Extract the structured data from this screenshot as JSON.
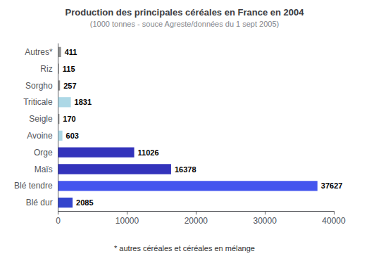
{
  "chart_data": {
    "type": "bar",
    "orientation": "horizontal",
    "title": "Production des principales céréales en France en 2004",
    "subtitle": "(1000 tonnes - souce Agreste/données du 1 sept 2005)",
    "footnote": "* autres céréales et céréales en mélange",
    "categories": [
      "Autres*",
      "Riz",
      "Sorgho",
      "Triticale",
      "Seigle",
      "Avoine",
      "Orge",
      "Maïs",
      "Blé tendre",
      "Blé dur"
    ],
    "values": [
      411,
      115,
      257,
      1831,
      170,
      603,
      11026,
      16378,
      37627,
      2085
    ],
    "colors": [
      "#909090",
      "#909090",
      "#909090",
      "#ADD8E6",
      "#909090",
      "#ADD8E6",
      "#3333BB",
      "#3333BB",
      "#4455EE",
      "#3344CC"
    ],
    "xlim": [
      0,
      40000
    ],
    "xticks": [
      0,
      10000,
      20000,
      30000,
      40000
    ],
    "data_labels": true,
    "grid": false
  }
}
